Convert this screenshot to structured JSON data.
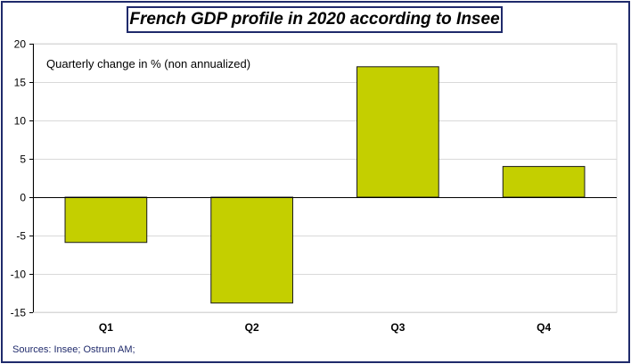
{
  "chart_data": {
    "type": "bar",
    "title": "French GDP profile in 2020 according to Insee",
    "annotation": "Quarterly change in % (non annualized)",
    "categories": [
      "Q1",
      "Q2",
      "Q3",
      "Q4"
    ],
    "values": [
      -5.9,
      -13.8,
      17.0,
      4.0
    ],
    "ylim": [
      -15,
      20
    ],
    "yticks": [
      -15,
      -10,
      -5,
      0,
      5,
      10,
      15,
      20
    ],
    "grid": true,
    "legend": "none",
    "xlabel": "",
    "ylabel": ""
  },
  "colors": {
    "bar_fill": "#c4cf00",
    "bar_stroke": "#1a1a1a",
    "frame": "#1f2a6b",
    "grid": "#d9d9d9"
  },
  "footer": {
    "source": "Sources: Insee; Ostrum AM;"
  }
}
